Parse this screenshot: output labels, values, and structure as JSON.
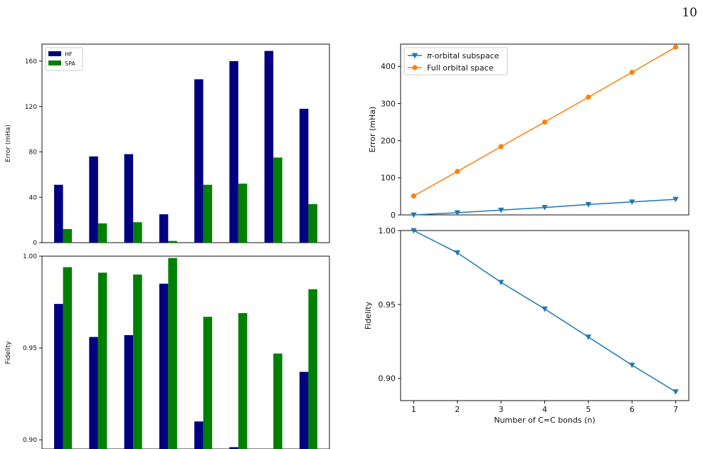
{
  "page_number": "10",
  "chart_data": [
    {
      "id": "left-top",
      "type": "bar",
      "ylabel": "Error (mHa)",
      "ylim": [
        0,
        175
      ],
      "yticks": [
        0,
        40,
        80,
        120,
        160
      ],
      "legend_position": "upper-left",
      "series": [
        {
          "name": "HF",
          "color": "#000080",
          "values": [
            51,
            76,
            78,
            25,
            144,
            160,
            169,
            118
          ]
        },
        {
          "name": "SPA",
          "color": "#008000",
          "values": [
            12,
            17,
            18,
            1.5,
            51,
            52,
            75,
            34
          ]
        }
      ]
    },
    {
      "id": "left-bottom",
      "type": "bar",
      "ylabel": "Fidelity",
      "ylim": [
        0.895,
        1.0
      ],
      "yticks": [
        0.9,
        0.95,
        1.0
      ],
      "series": [
        {
          "name": "HF",
          "color": "#000080",
          "values": [
            0.974,
            0.956,
            0.957,
            0.985,
            0.91,
            0.896,
            0.895,
            0.937
          ]
        },
        {
          "name": "SPA",
          "color": "#008000",
          "values": [
            0.994,
            0.991,
            0.99,
            0.999,
            0.967,
            0.969,
            0.947,
            0.982
          ]
        }
      ]
    },
    {
      "id": "right-top",
      "type": "line",
      "ylabel": "Error (mHa)",
      "ylim": [
        0,
        460
      ],
      "yticks": [
        0,
        100,
        200,
        300,
        400
      ],
      "xlim": [
        0.7,
        7.3
      ],
      "x": [
        1,
        2,
        3,
        4,
        5,
        6,
        7
      ],
      "legend_position": "upper-left",
      "series": [
        {
          "name": "π-orbital subspace",
          "label_prefix": "π",
          "label_rest": "-orbital subspace",
          "color": "#1f77b4",
          "marker": "triangle-down",
          "values": [
            0,
            6,
            13,
            20,
            28,
            35,
            42
          ]
        },
        {
          "name": "Full orbital space",
          "color": "#ff7f0e",
          "marker": "circle",
          "values": [
            51,
            117,
            184,
            250,
            317,
            384,
            452
          ]
        }
      ]
    },
    {
      "id": "right-bottom",
      "type": "line",
      "xlabel": "Number of C=C bonds (n)",
      "ylabel": "Fidelity",
      "ylim": [
        0.885,
        1.0
      ],
      "yticks": [
        0.9,
        0.95,
        1.0
      ],
      "xlim": [
        0.7,
        7.3
      ],
      "xticks": [
        1,
        2,
        3,
        4,
        5,
        6,
        7
      ],
      "x": [
        1,
        2,
        3,
        4,
        5,
        6,
        7
      ],
      "series": [
        {
          "name": "π-orbital subspace",
          "color": "#1f77b4",
          "marker": "triangle-down",
          "values": [
            1.0,
            0.985,
            0.965,
            0.947,
            0.928,
            0.909,
            0.891
          ]
        }
      ]
    }
  ]
}
